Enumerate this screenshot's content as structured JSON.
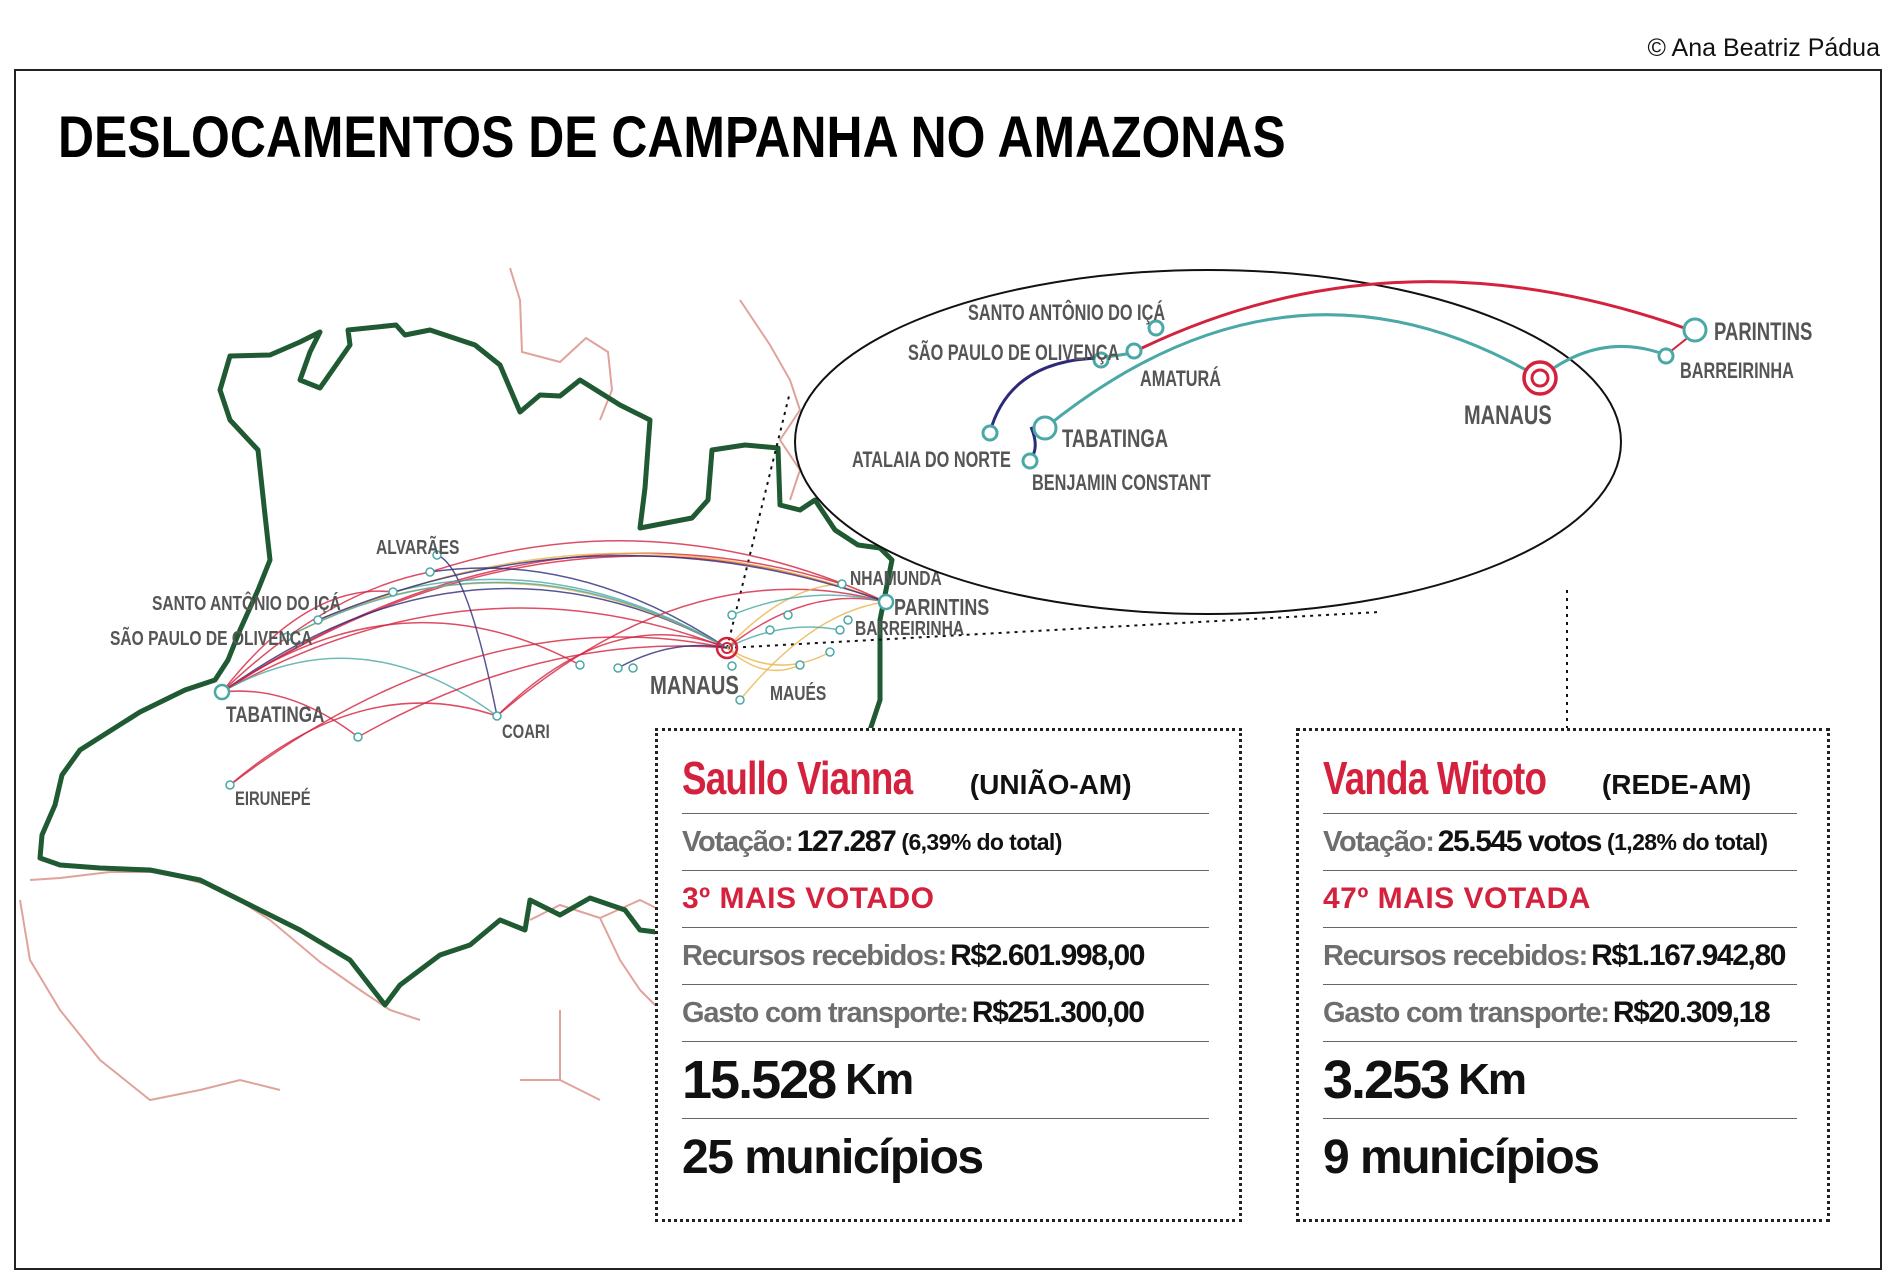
{
  "credit": "© Ana Beatriz Pádua",
  "title": "DESLOCAMENTOS DE CAMPANHA NO AMAZONAS",
  "map_labels": {
    "alvaraes": "ALVARÃES",
    "santo_antonio": "SANTO ANTÔNIO DO IÇÁ",
    "sao_paulo": "SÃO PAULO DE OLIVENÇA",
    "tabatinga": "TABATINGA",
    "eirunepe": "EIRUNEPÉ",
    "coari": "COARI",
    "manaus": "MANAUS",
    "maues": "MAUÉS",
    "nhamunda": "NHAMUNDÁ",
    "parintins": "PARINTINS",
    "barreirinha": "BARREIRINHA"
  },
  "inset_labels": {
    "santo_antonio": "SANTO ANTÔNIO DO IÇÁ",
    "sao_paulo": "SÃO PAULO DE OLIVENÇA",
    "amatura": "AMATURÁ",
    "atalaia": "ATALAIA DO NORTE",
    "tabatinga": "TABATINGA",
    "benjamin": "BENJAMIN CONSTANT",
    "manaus": "MANAUS",
    "parintins": "PARINTINS",
    "barreirinha": "BARREIRINHA"
  },
  "colors": {
    "accent_red": "#d4213d",
    "teal": "#4aa8a6",
    "navy": "#2d2a7a",
    "border_green": "#1f5a32",
    "border_pink": "#e0a39c"
  },
  "candidates": [
    {
      "name": "Saullo Vianna",
      "party": "(UNIÃO-AM)",
      "votes_label": "Votação:",
      "votes_value": "127.287",
      "votes_pct": "(6,39% do total)",
      "rank": "3º MAIS VOTADO",
      "resources_label": "Recursos recebidos:",
      "resources_value": "R$2.601.998,00",
      "transport_label": "Gasto com transporte:",
      "transport_value": "R$251.300,00",
      "km_value": "15.528",
      "km_unit": "Km",
      "municipalities": "25 municípios"
    },
    {
      "name": "Vanda Witoto",
      "party": "(REDE-AM)",
      "votes_label": "Votação:",
      "votes_value": "25.545 votos",
      "votes_pct": "(1,28% do total)",
      "rank": "47º MAIS VOTADA",
      "resources_label": "Recursos recebidos:",
      "resources_value": "R$1.167.942,80",
      "transport_label": "Gasto com transporte:",
      "transport_value": "R$20.309,18",
      "km_value": "3.253",
      "km_unit": "Km",
      "municipalities": "9 municípios"
    }
  ]
}
